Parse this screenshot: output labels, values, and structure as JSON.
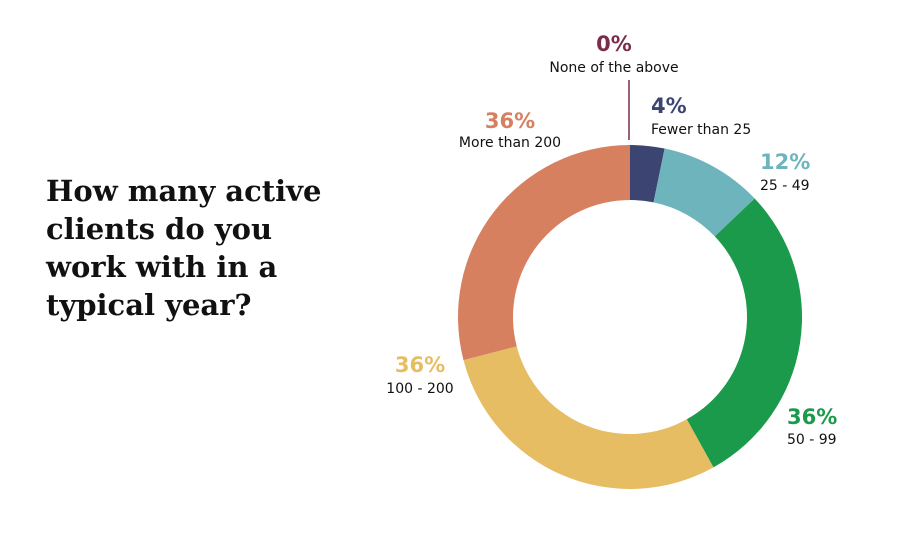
{
  "chart_data": {
    "type": "donut",
    "title": "How many active clients do you work with in a typical year?",
    "categories": [
      "None of the above",
      "Fewer than 25",
      "25 - 49",
      "50 - 99",
      "100 - 200",
      "More than 200"
    ],
    "values": [
      0,
      4,
      12,
      36,
      36,
      36
    ],
    "value_labels": [
      "0%",
      "4%",
      "12%",
      "36%",
      "36%",
      "36%"
    ],
    "colors": [
      "#7b2c4b",
      "#3c4572",
      "#6eb4bc",
      "#1a9a4a",
      "#e7bd63",
      "#d6805f"
    ]
  }
}
